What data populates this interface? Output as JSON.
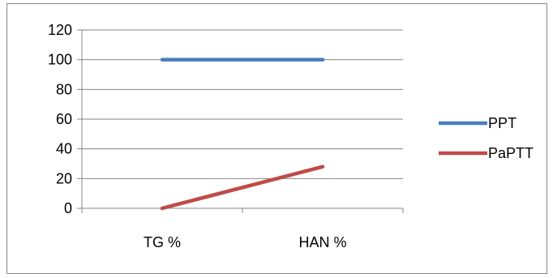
{
  "chart_data": {
    "type": "line",
    "categories": [
      "TG %",
      "HAN %"
    ],
    "series": [
      {
        "name": "PPT",
        "values": [
          100,
          100
        ],
        "color": "#4a7ebb"
      },
      {
        "name": "PaPTT",
        "values": [
          0,
          28
        ],
        "color": "#be4b48"
      }
    ],
    "ylim": [
      0,
      120
    ],
    "yticks": [
      0,
      20,
      40,
      60,
      80,
      100,
      120
    ],
    "grid": true,
    "legend": "right"
  }
}
